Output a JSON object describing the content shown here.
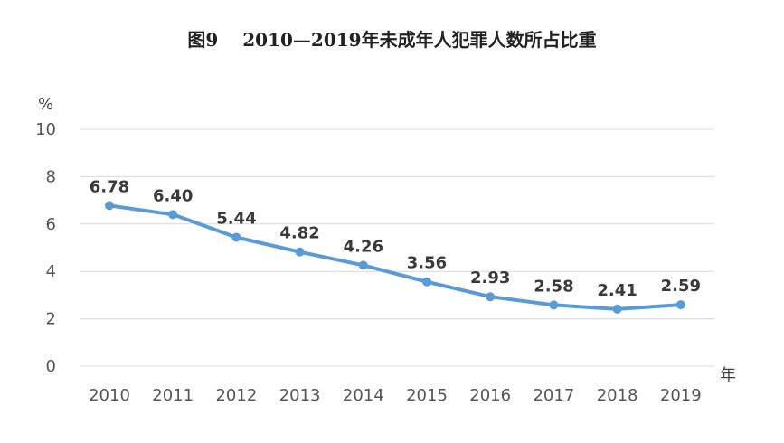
{
  "chart_data": {
    "type": "line",
    "title": "图9　 2010—2019年未成年人犯罪人数所占比重",
    "ylabel": "%",
    "xlabel": "年",
    "ylim": [
      0,
      10
    ],
    "yticks": [
      0,
      2,
      4,
      6,
      8,
      10
    ],
    "grid": true,
    "categories": [
      "2010",
      "2011",
      "2012",
      "2013",
      "2014",
      "2015",
      "2016",
      "2017",
      "2018",
      "2019"
    ],
    "series": [
      {
        "values": [
          6.78,
          6.4,
          5.44,
          4.82,
          4.26,
          3.56,
          2.93,
          2.58,
          2.41,
          2.59
        ],
        "labels": [
          "6.78",
          "6.40",
          "5.44",
          "4.82",
          "4.26",
          "3.56",
          "2.93",
          "2.58",
          "2.41",
          "2.59"
        ],
        "color": "#5b9bd5"
      }
    ]
  }
}
